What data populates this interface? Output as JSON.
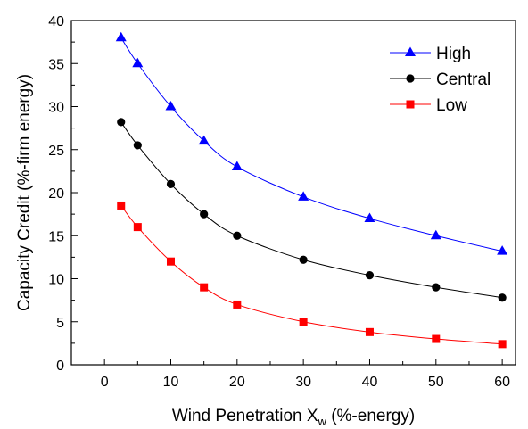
{
  "chart_data": {
    "type": "line",
    "title": "",
    "xlabel_main": "Wind Penetration X",
    "xlabel_sub": "w",
    "xlabel_tail": " (%-energy)",
    "ylabel": "Capacity Credit (%-firm energy)",
    "xlim": [
      -5,
      62
    ],
    "ylim": [
      0,
      40
    ],
    "xticks": [
      0,
      10,
      20,
      30,
      40,
      50,
      60
    ],
    "yticks": [
      0,
      5,
      10,
      15,
      20,
      25,
      30,
      35,
      40
    ],
    "x": [
      2.5,
      5,
      10,
      15,
      20,
      30,
      40,
      50,
      60
    ],
    "grid": false,
    "legend_position": "top-right",
    "series": [
      {
        "name": "High",
        "color": "#0000ff",
        "marker": "triangle",
        "values": [
          38.0,
          35.0,
          30.0,
          26.0,
          23.0,
          19.5,
          17.0,
          15.0,
          13.2
        ]
      },
      {
        "name": "Central",
        "color": "#000000",
        "marker": "circle",
        "values": [
          28.2,
          25.5,
          21.0,
          17.5,
          15.0,
          12.2,
          10.4,
          9.0,
          7.8
        ]
      },
      {
        "name": "Low",
        "color": "#ff0000",
        "marker": "square",
        "values": [
          18.5,
          16.0,
          12.0,
          9.0,
          7.0,
          5.0,
          3.8,
          3.0,
          2.4
        ]
      }
    ]
  }
}
